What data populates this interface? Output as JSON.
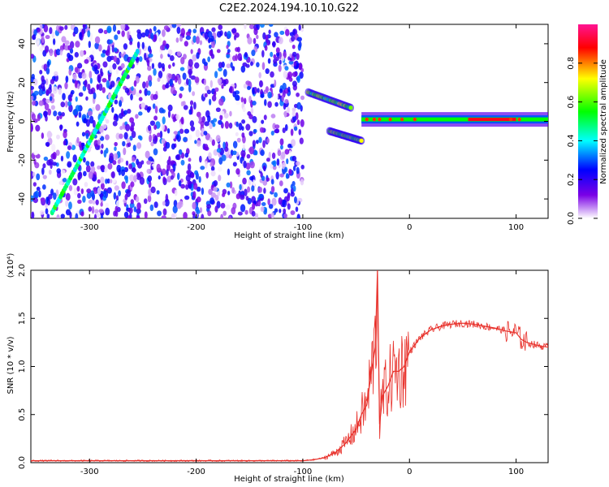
{
  "title": "C2E2.2024.194.10.10.G22",
  "chart_data": [
    {
      "type": "heatmap",
      "xlabel": "Height of straight line (km)",
      "ylabel": "Frequency (Hz)",
      "xlim": [
        -355,
        130
      ],
      "ylim": [
        -50,
        50
      ],
      "xticks": [
        -300,
        -200,
        -100,
        0,
        100
      ],
      "yticks": [
        -40,
        -20,
        0,
        20,
        40
      ],
      "colorbar": {
        "label": "Normalized spectral amplitude",
        "range": [
          0,
          1
        ],
        "ticks": [
          "0.0",
          "0.2",
          "0.4",
          "0.6",
          "0.8"
        ],
        "colors": [
          "#ffffff",
          "#7a00e6",
          "#0000ff",
          "#00ffff",
          "#00ff00",
          "#ffff00",
          "#ff0000",
          "#ff1493"
        ]
      },
      "features": [
        {
          "name": "noise-field",
          "x_range": [
            -355,
            -100
          ],
          "y_range": [
            -50,
            50
          ],
          "level": 0.25
        },
        {
          "name": "diagonal-streak",
          "from": [
            -335,
            -47
          ],
          "to": [
            -255,
            36
          ],
          "level": 0.45
        },
        {
          "name": "signal-upper-branch",
          "from": [
            -95,
            15
          ],
          "to": [
            -55,
            7
          ],
          "level": 0.6
        },
        {
          "name": "signal-lower-branch",
          "from": [
            -75,
            -5
          ],
          "to": [
            -45,
            -10
          ],
          "level": 0.6
        },
        {
          "name": "carrier",
          "x_range": [
            -45,
            130
          ],
          "y": 1,
          "level": 0.9
        }
      ]
    },
    {
      "type": "line",
      "xlabel": "Height of straight line (km)",
      "ylabel": "SNR (10 * v/v)",
      "y_multiplier": "(x10⁴)",
      "xlim": [
        -355,
        130
      ],
      "ylim": [
        0,
        2.0
      ],
      "xticks": [
        -300,
        -200,
        -100,
        0,
        100
      ],
      "yticks": [
        "0.0",
        "0.5",
        "1.0",
        "1.5",
        "2.0"
      ],
      "series": [
        {
          "color": "#e8302a",
          "x": [
            -355,
            -300,
            -250,
            -200,
            -150,
            -120,
            -100,
            -90,
            -80,
            -70,
            -60,
            -50,
            -45,
            -40,
            -35,
            -32,
            -30,
            -28,
            -25,
            -20,
            -15,
            -10,
            -5,
            0,
            10,
            20,
            30,
            40,
            50,
            60,
            70,
            80,
            90,
            100,
            105,
            110,
            120,
            130
          ],
          "y": [
            0.02,
            0.02,
            0.02,
            0.02,
            0.02,
            0.02,
            0.02,
            0.03,
            0.05,
            0.1,
            0.2,
            0.35,
            0.5,
            0.6,
            1.0,
            1.2,
            2.0,
            0.4,
            0.7,
            0.8,
            0.95,
            0.95,
            1.0,
            1.15,
            1.3,
            1.38,
            1.42,
            1.44,
            1.45,
            1.44,
            1.42,
            1.4,
            1.37,
            1.35,
            1.28,
            1.25,
            1.22,
            1.2
          ]
        }
      ]
    }
  ]
}
